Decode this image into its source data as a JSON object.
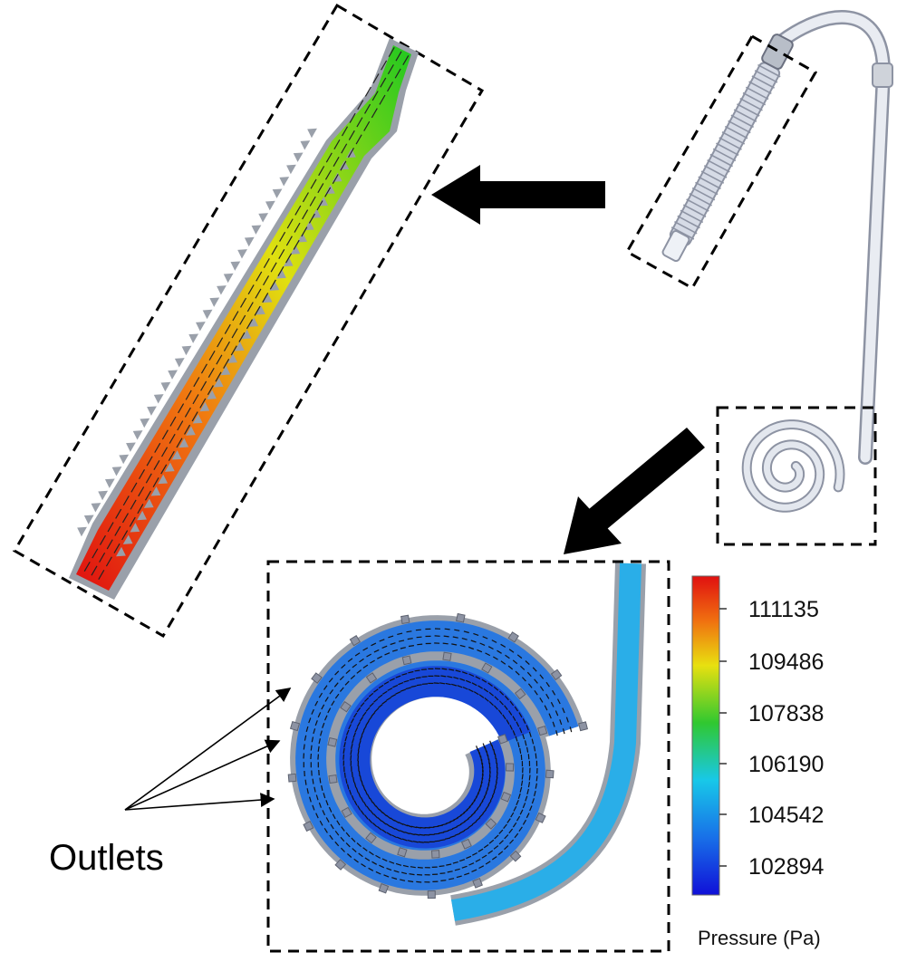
{
  "annotation": {
    "outlets_label": "Outlets"
  },
  "colorbar": {
    "title": "Pressure (Pa)",
    "ticks": [
      "111135",
      "109486",
      "107838",
      "106190",
      "104542",
      "102894"
    ],
    "colors": [
      "#e01010",
      "#f07010",
      "#e8e010",
      "#30c830",
      "#18c8e8",
      "#1870e8",
      "#1010d8"
    ]
  },
  "fills": {
    "device": "#d6dbe6",
    "device_stroke": "#8d93a3",
    "wall": "#9aa0aa",
    "spiral_outer": "#2a78e0",
    "spiral_inner": "#1848d8",
    "tube_flow": "#2aaee8"
  }
}
